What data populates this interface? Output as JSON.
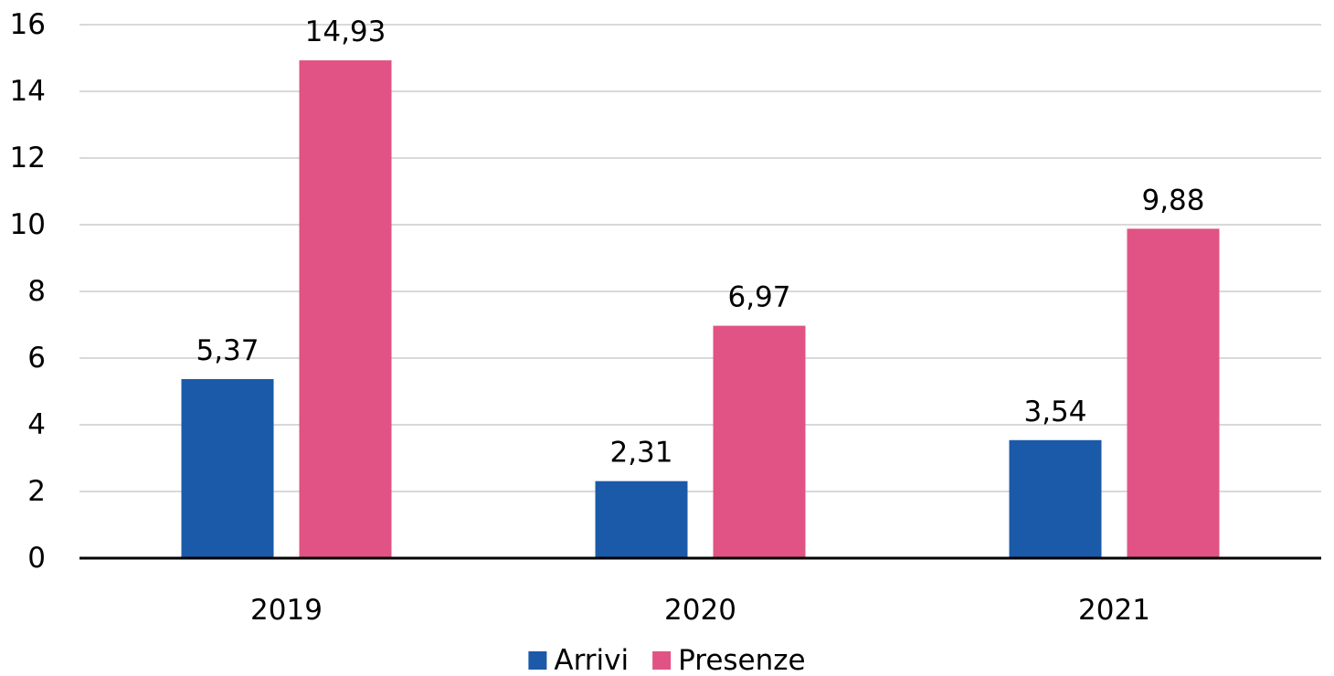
{
  "chart_data": {
    "type": "bar",
    "categories": [
      "2019",
      "2020",
      "2021"
    ],
    "series": [
      {
        "name": "Arrivi",
        "color": "#1b5aa9",
        "values": [
          5.37,
          2.31,
          3.54
        ],
        "labels": [
          "5,37",
          "2,31",
          "3,54"
        ]
      },
      {
        "name": "Presenze",
        "color": "#e05384",
        "values": [
          14.93,
          6.97,
          9.88
        ],
        "labels": [
          "14,93",
          "6,97",
          "9,88"
        ]
      }
    ],
    "ylim": [
      0,
      16
    ],
    "yticks": [
      0,
      2,
      4,
      6,
      8,
      10,
      12,
      14,
      16
    ],
    "grid": true,
    "legend": "bottom"
  }
}
